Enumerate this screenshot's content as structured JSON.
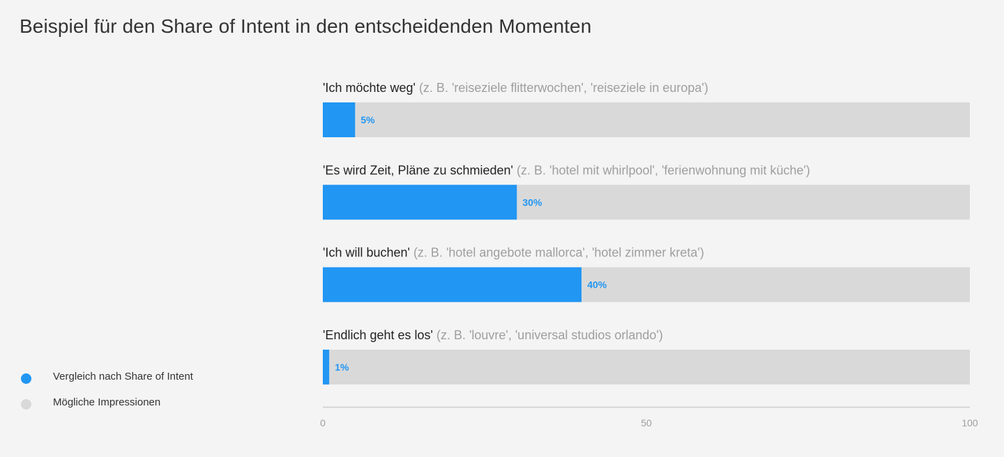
{
  "chart_data": {
    "type": "bar",
    "orientation": "horizontal",
    "stacked": true,
    "title": "Beispiel für den Share of Intent in den entscheidenden Momenten",
    "categories": [
      {
        "label": "'Ich möchte weg'",
        "examples": "(z. B. 'reiseziele flitterwochen', 'reiseziele in europa')"
      },
      {
        "label": "'Es wird Zeit, Pläne zu schmieden'",
        "examples": "(z. B. 'hotel mit whirlpool', 'ferienwohnung mit küche')"
      },
      {
        "label": "'Ich will buchen'",
        "examples": "(z. B. 'hotel angebote mallorca', 'hotel zimmer kreta')"
      },
      {
        "label": "'Endlich geht es los'",
        "examples": "(z. B. 'louvre', 'universal studios orlando')"
      }
    ],
    "series": [
      {
        "name": "Vergleich nach Share of Intent",
        "color": "#2196f3",
        "values": [
          5,
          30,
          40,
          1
        ],
        "data_labels": [
          "5%",
          "30%",
          "40%",
          "1%"
        ]
      },
      {
        "name": "Mögliche Impressionen",
        "color": "#d9d9d9",
        "values": [
          95,
          70,
          60,
          99
        ]
      }
    ],
    "xlim": [
      0,
      100
    ],
    "xticks": [
      "0",
      "50",
      "100"
    ],
    "grid": false,
    "legend_position": "bottom-left"
  }
}
